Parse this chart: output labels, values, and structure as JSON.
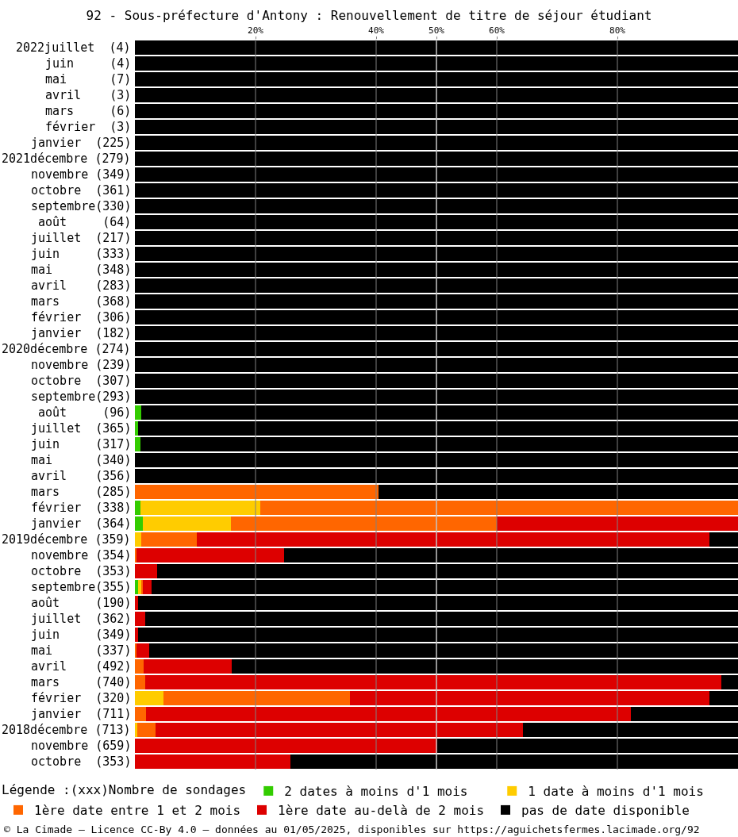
{
  "chart_data": {
    "type": "bar",
    "orientation": "horizontal",
    "stacked": true,
    "title": "92 - Sous-préfecture d'Antony : Renouvellement de titre de séjour étudiant",
    "categories": [
      "2022juillet  (4)",
      "juin     (4)",
      "mai      (7)",
      "avril    (3)",
      "mars     (6)",
      "février  (3)",
      "janvier  (225)",
      "2021décembre (279)",
      "novembre (349)",
      "octobre  (361)",
      "septembre(330)",
      "août     (64)",
      "juillet  (217)",
      "juin     (333)",
      "mai      (348)",
      "avril    (283)",
      "mars     (368)",
      "février  (306)",
      "janvier  (182)",
      "2020décembre (274)",
      "novembre (239)",
      "octobre  (307)",
      "septembre(293)",
      "août     (96)",
      "juillet  (365)",
      "juin     (317)",
      "mai      (340)",
      "avril    (356)",
      "mars     (285)",
      "février  (338)",
      "janvier  (364)",
      "2019décembre (359)",
      "novembre (354)",
      "octobre  (353)",
      "septembre(355)",
      "août     (190)",
      "juillet  (362)",
      "juin     (349)",
      "mai      (337)",
      "avril    (492)",
      "mars     (740)",
      "février  (320)",
      "janvier  (711)",
      "2018décembre (713)",
      "novembre (659)",
      "octobre  (353)"
    ],
    "series": [
      {
        "name": "2 dates à moins d'1 mois",
        "color": "#33cc00",
        "values": [
          0,
          0,
          0,
          0,
          0,
          0,
          0,
          0,
          0,
          0,
          0,
          0,
          0,
          0,
          0,
          0,
          0,
          0,
          0,
          0,
          0,
          0,
          0,
          1.0,
          0.5,
          0.9,
          0,
          0,
          0,
          0.9,
          1.3,
          0,
          0,
          0,
          0.5,
          0,
          0,
          0,
          0,
          0,
          0,
          0,
          0,
          0,
          0,
          0
        ]
      },
      {
        "name": "1 date à moins d'1 mois",
        "color": "#ffcc00",
        "values": [
          0,
          0,
          0,
          0,
          0,
          0,
          0,
          0,
          0,
          0,
          0,
          0,
          0,
          0,
          0,
          0,
          0,
          0,
          0,
          0,
          0,
          0,
          0,
          0,
          0,
          0,
          0,
          0,
          0,
          19.9,
          14.6,
          1.0,
          0,
          0,
          0.5,
          0,
          0,
          0,
          0,
          0,
          0,
          4.7,
          0,
          0.4,
          0,
          0
        ]
      },
      {
        "name": "1ère date entre 1 et 2 mois",
        "color": "#ff6600",
        "values": [
          0,
          0,
          0,
          0,
          0,
          0,
          0,
          0,
          0,
          0,
          0,
          0,
          0,
          0,
          0,
          0,
          0,
          0,
          0,
          0,
          0,
          0,
          0,
          0,
          0,
          0,
          0,
          0,
          40.4,
          79.2,
          44.1,
          9.3,
          0.2,
          0,
          0.3,
          0,
          0,
          0,
          0.2,
          1.5,
          1.7,
          30.9,
          1.8,
          3.0,
          0,
          0
        ]
      },
      {
        "name": "1ère date au-delà de 2 mois",
        "color": "#dd0000",
        "values": [
          0,
          0,
          0,
          0,
          0,
          0,
          0,
          0,
          0,
          0,
          0,
          0,
          0,
          0,
          0,
          0,
          0,
          0,
          0,
          0,
          0,
          0,
          0,
          0,
          0,
          0,
          0,
          0,
          0,
          0,
          40.0,
          84.9,
          24.6,
          3.7,
          1.4,
          0.5,
          1.7,
          0.5,
          2.2,
          14.6,
          95.5,
          59.7,
          80.4,
          60.9,
          50.1,
          25.8
        ]
      },
      {
        "name": "pas de date disponible",
        "color": "#000000",
        "values": [
          100,
          100,
          100,
          100,
          100,
          100,
          100,
          100,
          100,
          100,
          100,
          100,
          100,
          100,
          100,
          100,
          100,
          100,
          100,
          100,
          100,
          100,
          100,
          99.0,
          99.5,
          99.1,
          100,
          100,
          59.6,
          0,
          0,
          4.8,
          75.2,
          96.3,
          97.3,
          99.5,
          98.3,
          99.5,
          97.6,
          83.9,
          2.8,
          4.7,
          17.8,
          35.7,
          49.9,
          74.2
        ]
      }
    ],
    "xlim": [
      0,
      100
    ],
    "xticks": [
      {
        "value": 20,
        "label": "20%"
      },
      {
        "value": 40,
        "label": "40%"
      },
      {
        "value": 50,
        "label": "50%"
      },
      {
        "value": 60,
        "label": "60%"
      },
      {
        "value": 80,
        "label": "80%"
      }
    ],
    "grid": "x",
    "ref_lines": [
      {
        "axis": "x",
        "value": 50,
        "color": "#e8e8e8"
      }
    ],
    "legend": "bottom",
    "legend_title": "Légende :(xxx)Nombre de sondages",
    "annotations": [
      "© La Cimade — Licence CC-By 4.0 — données au 01/05/2025, disponibles sur https://aguichetsfermes.lacimade.org/92"
    ]
  }
}
